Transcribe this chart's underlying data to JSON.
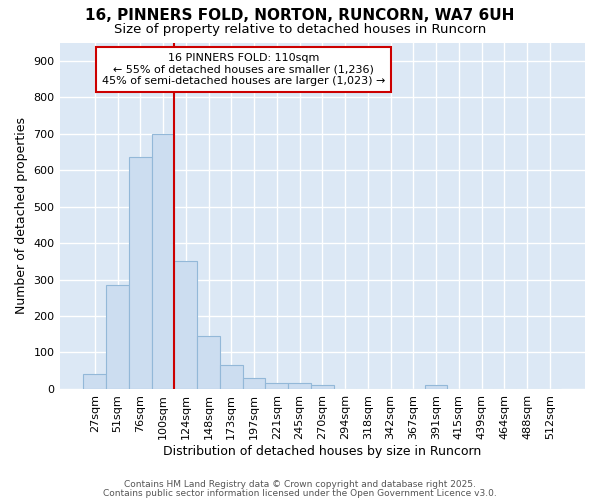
{
  "title1": "16, PINNERS FOLD, NORTON, RUNCORN, WA7 6UH",
  "title2": "Size of property relative to detached houses in Runcorn",
  "xlabel": "Distribution of detached houses by size in Runcorn",
  "ylabel": "Number of detached properties",
  "categories": [
    "27sqm",
    "51sqm",
    "76sqm",
    "100sqm",
    "124sqm",
    "148sqm",
    "173sqm",
    "197sqm",
    "221sqm",
    "245sqm",
    "270sqm",
    "294sqm",
    "318sqm",
    "342sqm",
    "367sqm",
    "391sqm",
    "415sqm",
    "439sqm",
    "464sqm",
    "488sqm",
    "512sqm"
  ],
  "values": [
    42,
    285,
    635,
    700,
    350,
    145,
    65,
    30,
    15,
    15,
    10,
    0,
    0,
    0,
    0,
    10,
    0,
    0,
    0,
    0,
    0
  ],
  "bar_color": "#ccddf0",
  "bar_edge_color": "#93b8d8",
  "plot_bg_color": "#dce8f5",
  "fig_bg_color": "#ffffff",
  "grid_color": "#ffffff",
  "vline_x": 3.5,
  "vline_color": "#cc0000",
  "annotation_line1": "16 PINNERS FOLD: 110sqm",
  "annotation_line2": "← 55% of detached houses are smaller (1,236)",
  "annotation_line3": "45% of semi-detached houses are larger (1,023) →",
  "annotation_box_color": "#cc0000",
  "ylim": [
    0,
    950
  ],
  "yticks": [
    0,
    100,
    200,
    300,
    400,
    500,
    600,
    700,
    800,
    900
  ],
  "footer1": "Contains HM Land Registry data © Crown copyright and database right 2025.",
  "footer2": "Contains public sector information licensed under the Open Government Licence v3.0.",
  "title_fontsize": 11,
  "subtitle_fontsize": 9.5,
  "axis_label_fontsize": 9,
  "tick_fontsize": 8,
  "footer_fontsize": 6.5
}
